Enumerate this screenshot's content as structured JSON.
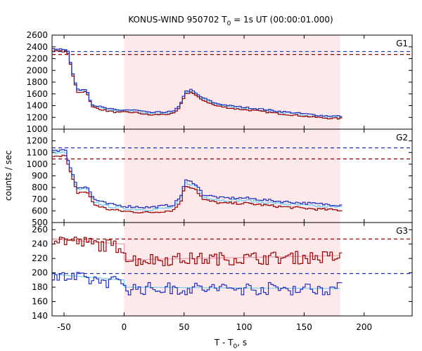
{
  "chart_data": {
    "type": "line",
    "title_main": "KONUS-WIND 950702 T",
    "title_sub": "0",
    "title_rest": " = 1s UT (00:00:01.000)",
    "xlabel_main": "T - T",
    "xlabel_sub": "0",
    "xlabel_rest": ", s",
    "ylabel": "counts / sec",
    "xlim": [
      -60,
      240
    ],
    "xticks": [
      -50,
      0,
      50,
      100,
      150,
      200
    ],
    "highlight_interval": [
      0,
      180
    ],
    "colors": {
      "red": "#9b0000",
      "blue": "#1f2fbf",
      "cyan": "#7fd0f0",
      "pink": "#e8a0b0",
      "shade": "#fde8ea"
    },
    "panels": [
      {
        "name": "G1",
        "ylim": [
          1000,
          2600
        ],
        "yticks": [
          1000,
          1200,
          1400,
          1600,
          1800,
          2000,
          2200,
          2400,
          2600
        ],
        "hlines": [
          {
            "color": "blue",
            "y": 2320
          },
          {
            "color": "red",
            "y": 2270
          }
        ],
        "anchors": [
          [
            -60,
            2350
          ],
          [
            -48,
            2340
          ],
          [
            -44,
            1950
          ],
          [
            -40,
            1650
          ],
          [
            -32,
            1660
          ],
          [
            -28,
            1400
          ],
          [
            -15,
            1330
          ],
          [
            -5,
            1300
          ],
          [
            0,
            1310
          ],
          [
            10,
            1300
          ],
          [
            20,
            1260
          ],
          [
            40,
            1280
          ],
          [
            45,
            1370
          ],
          [
            50,
            1620
          ],
          [
            55,
            1650
          ],
          [
            62,
            1540
          ],
          [
            75,
            1420
          ],
          [
            90,
            1370
          ],
          [
            110,
            1330
          ],
          [
            130,
            1280
          ],
          [
            150,
            1240
          ],
          [
            165,
            1210
          ],
          [
            180,
            1200
          ]
        ],
        "offsets": {
          "red": -20,
          "blue": 20,
          "cyan": 0
        },
        "noise": 25
      },
      {
        "name": "G2",
        "ylim": [
          500,
          1300
        ],
        "yticks": [
          500,
          600,
          700,
          800,
          900,
          1000,
          1100,
          1200
        ],
        "hlines": [
          {
            "color": "blue",
            "y": 1140
          },
          {
            "color": "red",
            "y": 1045
          }
        ],
        "anchors": [
          [
            -60,
            1100
          ],
          [
            -50,
            1100
          ],
          [
            -45,
            930
          ],
          [
            -40,
            780
          ],
          [
            -32,
            790
          ],
          [
            -26,
            680
          ],
          [
            -15,
            640
          ],
          [
            0,
            620
          ],
          [
            20,
            610
          ],
          [
            40,
            630
          ],
          [
            46,
            700
          ],
          [
            50,
            840
          ],
          [
            58,
            820
          ],
          [
            65,
            720
          ],
          [
            80,
            690
          ],
          [
            100,
            690
          ],
          [
            130,
            660
          ],
          [
            160,
            640
          ],
          [
            180,
            630
          ]
        ],
        "offsets": {
          "red": -25,
          "blue": 20,
          "cyan": 0
        },
        "noise": 20
      },
      {
        "name": "G3",
        "ylim": [
          140,
          270
        ],
        "yticks": [
          140,
          160,
          180,
          200,
          220,
          240,
          260
        ],
        "hlines": [
          {
            "color": "red",
            "y": 247
          },
          {
            "color": "blue",
            "y": 199
          }
        ],
        "anchors_red": [
          [
            -60,
            247
          ],
          [
            0,
            235
          ],
          [
            1,
            218
          ],
          [
            180,
            222
          ]
        ],
        "anchors_blue": [
          [
            -60,
            195
          ],
          [
            0,
            186
          ],
          [
            1,
            178
          ],
          [
            180,
            178
          ]
        ],
        "noise": 9
      }
    ]
  }
}
